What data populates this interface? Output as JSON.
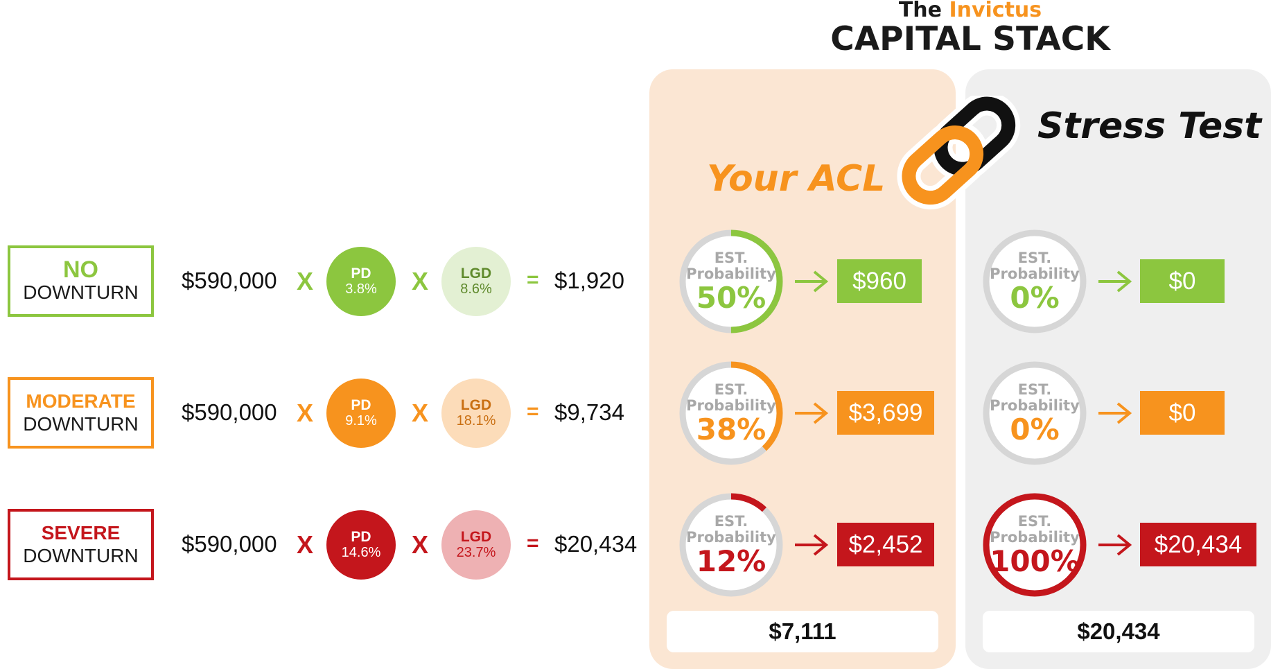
{
  "header": {
    "prefix": "The",
    "brand": "Invictus",
    "title": "CAPITAL STACK"
  },
  "columns": {
    "acl_title": "Your ACL",
    "stress_title": "Stress Test"
  },
  "colors": {
    "green": "#8cc63f",
    "orange": "#f7931e",
    "red": "#c4161c",
    "ring_track": "#d6d6d6"
  },
  "scenarios": [
    {
      "label_top": "NO",
      "label_bottom": "DOWNTURN",
      "exposure": "$590,000",
      "op1": "X",
      "pd_label": "PD",
      "pd_value": "3.8%",
      "op2": "X",
      "lgd_label": "LGD",
      "lgd_value": "8.6%",
      "eq": "=",
      "expected_loss": "$1,920",
      "acl": {
        "est": "EST.",
        "prob_label": "Probability",
        "prob": "50%",
        "fraction": 0.5,
        "amount": "$960"
      },
      "stress": {
        "est": "EST.",
        "prob_label": "Probability",
        "prob": "0%",
        "fraction": 0,
        "amount": "$0"
      }
    },
    {
      "label_top": "MODERATE",
      "label_bottom": "DOWNTURN",
      "exposure": "$590,000",
      "op1": "X",
      "pd_label": "PD",
      "pd_value": "9.1%",
      "op2": "X",
      "lgd_label": "LGD",
      "lgd_value": "18.1%",
      "eq": "=",
      "expected_loss": "$9,734",
      "acl": {
        "est": "EST.",
        "prob_label": "Probability",
        "prob": "38%",
        "fraction": 0.38,
        "amount": "$3,699"
      },
      "stress": {
        "est": "EST.",
        "prob_label": "Probability",
        "prob": "0%",
        "fraction": 0,
        "amount": "$0"
      }
    },
    {
      "label_top": "SEVERE",
      "label_bottom": "DOWNTURN",
      "exposure": "$590,000",
      "op1": "X",
      "pd_label": "PD",
      "pd_value": "14.6%",
      "op2": "X",
      "lgd_label": "LGD",
      "lgd_value": "23.7%",
      "eq": "=",
      "expected_loss": "$20,434",
      "acl": {
        "est": "EST.",
        "prob_label": "Probability",
        "prob": "12%",
        "fraction": 0.12,
        "amount": "$2,452"
      },
      "stress": {
        "est": "EST.",
        "prob_label": "Probability",
        "prob": "100%",
        "fraction": 1,
        "amount": "$20,434"
      }
    }
  ],
  "totals": {
    "acl": "$7,111",
    "stress": "$20,434"
  }
}
